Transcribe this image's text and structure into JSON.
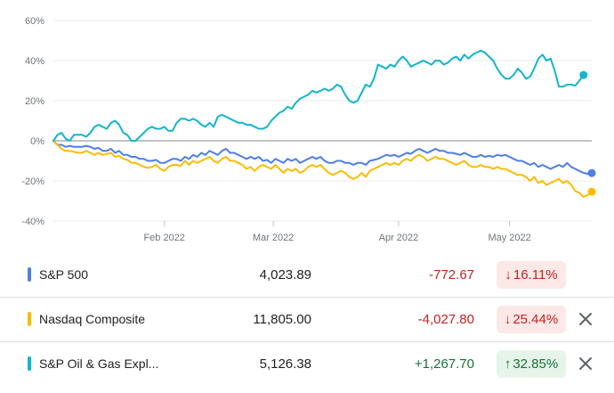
{
  "chart_data": {
    "type": "line",
    "x_ticks": [
      "Feb 2022",
      "Mar 2022",
      "Apr 2022",
      "May 2022"
    ],
    "y_ticks": [
      "60%",
      "40%",
      "20%",
      "0%",
      "-20%",
      "-40%"
    ],
    "ylim": [
      -40,
      60
    ],
    "x_range": [
      0,
      131
    ],
    "x_tick_positions": [
      27,
      53.5,
      84,
      111
    ],
    "grid": true,
    "series": [
      {
        "name": "S&P 500",
        "color": "#4f7ee8",
        "values": [
          0,
          -2,
          -2,
          -3,
          -2.5,
          -3,
          -3,
          -3,
          -2.5,
          -3,
          -4,
          -3.5,
          -5,
          -5,
          -4,
          -6,
          -5,
          -7,
          -7,
          -8,
          -8,
          -9,
          -9,
          -10,
          -10,
          -9.5,
          -11,
          -11,
          -10,
          -9,
          -9,
          -10,
          -8,
          -9,
          -7,
          -8,
          -6,
          -7,
          -5,
          -6,
          -7,
          -5,
          -4,
          -6,
          -6,
          -7,
          -8,
          -9,
          -8,
          -9,
          -8,
          -10,
          -9.5,
          -11,
          -9,
          -10,
          -11,
          -9,
          -10,
          -9,
          -11,
          -10,
          -9,
          -8,
          -9,
          -8,
          -10,
          -11,
          -11,
          -10,
          -10,
          -11,
          -11,
          -12,
          -11,
          -11,
          -12,
          -10,
          -9.5,
          -9,
          -8,
          -7,
          -7.5,
          -7,
          -8,
          -7,
          -6,
          -6.5,
          -5,
          -4,
          -5,
          -6,
          -5,
          -4,
          -5,
          -5,
          -6,
          -6,
          -6.5,
          -7,
          -6,
          -7,
          -8,
          -8,
          -7,
          -8,
          -7.5,
          -8,
          -7,
          -7.5,
          -7,
          -8,
          -9,
          -10,
          -10,
          -11,
          -12,
          -11,
          -13,
          -12,
          -13,
          -14,
          -13,
          -12,
          -13,
          -11,
          -13,
          -14,
          -15,
          -16,
          -16.5,
          -16.1
        ],
        "end_marker": true
      },
      {
        "name": "Nasdaq Composite",
        "color": "#fbbc04",
        "values": [
          0,
          -2,
          -4,
          -5,
          -5,
          -5.5,
          -6,
          -6,
          -5,
          -6,
          -7,
          -6,
          -7,
          -6.5,
          -6,
          -8,
          -7.5,
          -9,
          -9.5,
          -11,
          -11,
          -12,
          -13,
          -13.5,
          -13,
          -12,
          -14,
          -15,
          -13,
          -12,
          -12,
          -12.5,
          -10,
          -12,
          -10,
          -11,
          -10,
          -9,
          -8,
          -10,
          -11,
          -9,
          -8,
          -10,
          -10,
          -11,
          -12,
          -14,
          -13,
          -15,
          -13,
          -12,
          -13,
          -14,
          -12,
          -14,
          -16,
          -14,
          -15,
          -14,
          -16,
          -15,
          -13,
          -12,
          -13,
          -12,
          -14,
          -16,
          -17,
          -16,
          -15,
          -16,
          -18,
          -19,
          -18,
          -16,
          -18,
          -15,
          -14,
          -13,
          -12,
          -11,
          -12,
          -11,
          -12,
          -10,
          -9,
          -10,
          -8,
          -7,
          -8,
          -10,
          -9,
          -8,
          -9,
          -9,
          -10,
          -11,
          -12,
          -11,
          -10,
          -12,
          -13,
          -13,
          -12,
          -13,
          -13,
          -14,
          -13,
          -14,
          -14,
          -15,
          -16,
          -17,
          -17,
          -18,
          -20,
          -18,
          -21,
          -20,
          -22,
          -21,
          -20,
          -19,
          -21,
          -20,
          -22,
          -25,
          -26,
          -28,
          -27,
          -25.4
        ],
        "end_marker": true
      },
      {
        "name": "S&P Oil & Gas Expl...",
        "color": "#12b5cb",
        "values": [
          0,
          3,
          4,
          1,
          0,
          3,
          3,
          3,
          2,
          4,
          7,
          8,
          7,
          6,
          9,
          10,
          8,
          4,
          3,
          0,
          0,
          2,
          4,
          6,
          7,
          6,
          6,
          7,
          5,
          5,
          9,
          11,
          11,
          10,
          11,
          10,
          8,
          7,
          9,
          7,
          12,
          13,
          12,
          11,
          10,
          9,
          9,
          8,
          8,
          7,
          6,
          6,
          7,
          10,
          12,
          14,
          15,
          17,
          16,
          19,
          21,
          22,
          23,
          25,
          24,
          25,
          26,
          25,
          26,
          28,
          27,
          23,
          20,
          19,
          20,
          24,
          28,
          27,
          31,
          38,
          37,
          36,
          38,
          37,
          40,
          42,
          40,
          37,
          38,
          39,
          40,
          39,
          38,
          40,
          40,
          38,
          39,
          41,
          42,
          40,
          43,
          41,
          43,
          44,
          45,
          44,
          42,
          40,
          36,
          33,
          31,
          31,
          33,
          36,
          34,
          31,
          32,
          36,
          41,
          43,
          40,
          41,
          35,
          27,
          27,
          28,
          28,
          27.5,
          30,
          32.85
        ],
        "end_marker": true
      }
    ]
  },
  "rows": [
    {
      "name": "S&P 500",
      "value": "4,023.89",
      "change": "-772.67",
      "pct": "16.11%",
      "arrow": "↓",
      "color": "#4f7ee8"
    },
    {
      "name": "Nasdaq Composite",
      "value": "11,805.00",
      "change": "-4,027.80",
      "pct": "25.44%",
      "arrow": "↓",
      "color": "#fbbc04"
    },
    {
      "name": "S&P Oil & Gas Expl...",
      "value": "5,126.38",
      "change": "+1,267.70",
      "pct": "32.85%",
      "arrow": "↑",
      "color": "#12b5cb"
    }
  ],
  "icons": {
    "close": "close-icon",
    "arrow_down": "arrow-down-icon",
    "arrow_up": "arrow-up-icon"
  }
}
